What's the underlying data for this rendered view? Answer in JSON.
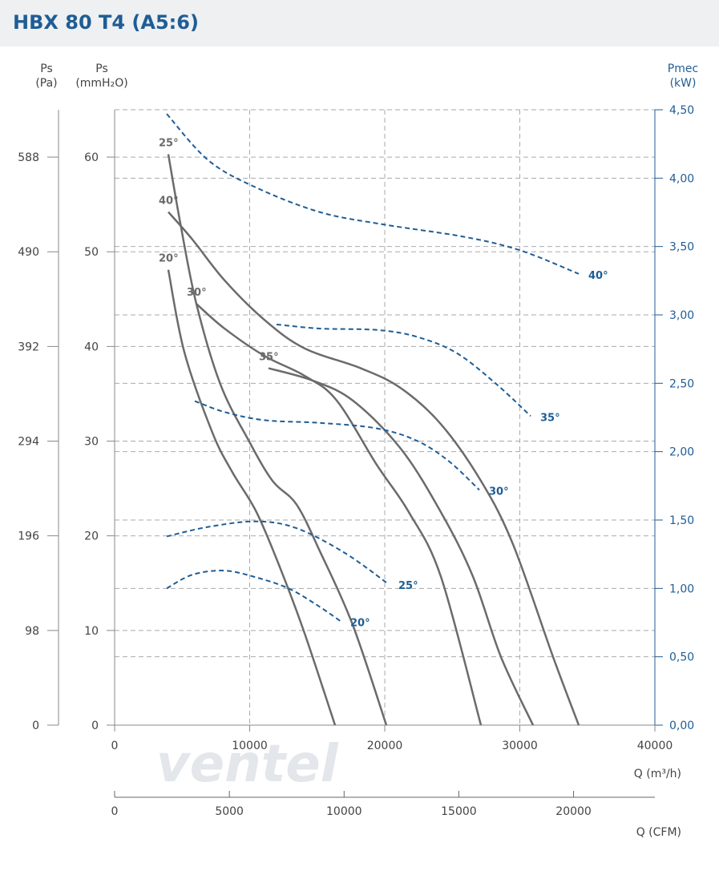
{
  "chart_data": {
    "type": "fan-curve",
    "title": "HBX 80 T4 (A5:6)",
    "y_pa_label": [
      "Ps",
      "(Pa)"
    ],
    "y_label": [
      "Ps",
      "(mmH₂O)"
    ],
    "y2_label": [
      "Pmec",
      "(kW)"
    ],
    "x_label": "Q (m³/h)",
    "x2_label": "Q (CFM)",
    "watermark": "ventel",
    "xlim": [
      0,
      40000
    ],
    "xticks": [
      0,
      10000,
      20000,
      30000,
      40000
    ],
    "x2lim": [
      0,
      23543
    ],
    "x2ticks": [
      0,
      5000,
      10000,
      15000,
      20000
    ],
    "ylim": [
      0,
      65
    ],
    "yticks": [
      0,
      10,
      20,
      30,
      40,
      50,
      60
    ],
    "y_pa_lim": [
      0,
      637
    ],
    "y_pa_ticks": [
      0,
      98,
      196,
      294,
      392,
      490,
      588
    ],
    "y2lim": [
      0,
      4.5
    ],
    "y2ticks": [
      {
        "value": 0,
        "label": "0,00"
      },
      {
        "value": 0.5,
        "label": "0,50"
      },
      {
        "value": 1,
        "label": "1,00"
      },
      {
        "value": 1.5,
        "label": "1,50"
      },
      {
        "value": 2,
        "label": "2,00"
      },
      {
        "value": 2.5,
        "label": "2,50"
      },
      {
        "value": 3,
        "label": "3,00"
      },
      {
        "value": 3.5,
        "label": "3,50"
      },
      {
        "value": 4,
        "label": "4,00"
      },
      {
        "value": 4.5,
        "label": "4,50"
      }
    ],
    "grid": true,
    "pressure_color": "#6b6b6b",
    "power_color": "#1f5d94",
    "series": [
      {
        "name": "20°",
        "x": [
          3976,
          5163,
          7240,
          8724,
          10504,
          12285,
          14065,
          16320
        ],
        "values": [
          48.1,
          39.4,
          30.9,
          26.7,
          22.5,
          16.5,
          9.7,
          0
        ]
      },
      {
        "name": "25°",
        "x": [
          3976,
          4866,
          6053,
          7834,
          9911,
          11691,
          13472,
          15252,
          17626,
          20119
        ],
        "values": [
          60.3,
          53.0,
          44.5,
          36.0,
          30.1,
          25.8,
          23.3,
          18.2,
          10.6,
          0
        ]
      },
      {
        "name": "30°",
        "x": [
          6053,
          8131,
          11098,
          14065,
          16439,
          19407,
          21780,
          24154,
          27122
        ],
        "values": [
          44.5,
          41.9,
          39.0,
          36.9,
          34.3,
          27.5,
          22.5,
          15.7,
          0
        ]
      },
      {
        "name": "35°",
        "x": [
          11395,
          14659,
          17626,
          21187,
          24154,
          26528,
          28605,
          30979
        ],
        "values": [
          37.7,
          36.4,
          34.3,
          29.2,
          22.5,
          15.7,
          7.2,
          0
        ]
      },
      {
        "name": "40°",
        "x": [
          3976,
          5757,
          8131,
          11098,
          14065,
          18220,
          21187,
          24154,
          27122,
          29496,
          32463,
          34362
        ],
        "values": [
          54.2,
          51.3,
          47.0,
          42.8,
          39.8,
          37.7,
          35.6,
          31.8,
          25.8,
          19.1,
          7.2,
          0
        ]
      },
      {
        "name": "40°",
        "axis": "y2",
        "x": [
          3858,
          6944,
          10504,
          15252,
          19999,
          25935,
          30089,
          34362
        ],
        "values": [
          4.47,
          4.13,
          3.93,
          3.75,
          3.66,
          3.57,
          3.47,
          3.3
        ]
      },
      {
        "name": "35°",
        "axis": "y2",
        "x": [
          11988,
          15252,
          19407,
          22374,
          25341,
          28309,
          30801
        ],
        "values": [
          2.93,
          2.9,
          2.89,
          2.84,
          2.72,
          2.49,
          2.26
        ]
      },
      {
        "name": "30°",
        "axis": "y2",
        "x": [
          5935,
          8131,
          11098,
          15252,
          19407,
          22374,
          24748,
          27003
        ],
        "values": [
          2.37,
          2.29,
          2.23,
          2.21,
          2.17,
          2.08,
          1.93,
          1.72
        ]
      },
      {
        "name": "25°",
        "axis": "y2",
        "x": [
          3858,
          6944,
          10504,
          13472,
          17033,
          20297
        ],
        "values": [
          1.38,
          1.45,
          1.49,
          1.44,
          1.26,
          1.03
        ]
      },
      {
        "name": "20°",
        "axis": "y2",
        "x": [
          3858,
          5757,
          8131,
          10504,
          12878,
          14955,
          16736
        ],
        "values": [
          1.0,
          1.1,
          1.13,
          1.08,
          1.0,
          0.88,
          0.76
        ]
      }
    ]
  }
}
